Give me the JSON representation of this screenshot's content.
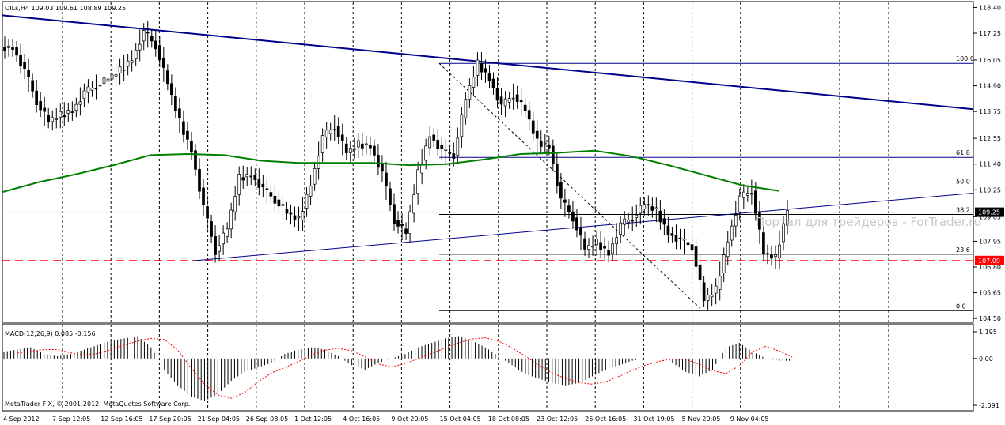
{
  "window": {
    "symbol_header": "OILs,H4  109.03 109.61 108.89 109.25",
    "macd_header": "MACD(12,26,9) 0.085 -0.156",
    "copyright": "MetaTrader FIX, © 2001-2012, MetaQuotes Software Corp.",
    "watermark": "Портал для трейдеров - ForTrader.ru"
  },
  "colors": {
    "ma": "#008000",
    "trendline": "#00008b",
    "support_line": "#ff0000",
    "current_price_box": "#000000",
    "support_price_box": "#ff0000",
    "macd_signal": "#ff0000"
  },
  "chart_data": {
    "type": "candlestick",
    "price_axis": {
      "ticks": [
        "118.40",
        "117.25",
        "116.05",
        "114.90",
        "113.75",
        "112.55",
        "111.40",
        "110.25",
        "109.05",
        "107.95",
        "106.80",
        "105.65",
        "104.50"
      ],
      "min": 104.4,
      "max": 118.45,
      "current_price": "109.25",
      "support_price": "107.09"
    },
    "macd_axis": {
      "ticks": [
        "1.195",
        "0.00",
        "-2.091"
      ],
      "max": 1.195,
      "min": -2.091
    },
    "time_labels": [
      "4 Sep 2012",
      "7 Sep 12:05",
      "12 Sep 16:05",
      "17 Sep 20:05",
      "21 Sep 04:05",
      "26 Sep 08:05",
      "1 Oct 12:05",
      "4 Oct 16:05",
      "9 Oct 20:05",
      "15 Oct 04:05",
      "18 Oct 08:05",
      "23 Oct 12:05",
      "26 Oct 16:05",
      "31 Oct 19:05",
      "5 Nov 20:05",
      "9 Nov 04:05"
    ],
    "fibonacci_levels": [
      {
        "label": "100.0",
        "price": 115.9
      },
      {
        "label": "61.8",
        "price": 111.7
      },
      {
        "label": "50.0",
        "price": 110.42
      },
      {
        "label": "38.2",
        "price": 109.15
      },
      {
        "label": "23.6",
        "price": 107.37
      },
      {
        "label": "0.0",
        "price": 104.85
      }
    ],
    "trend_lines": [
      {
        "name": "descending resistance",
        "from_price": 118.05,
        "to_price": 113.85
      },
      {
        "name": "ascending support",
        "from_price": 107.08,
        "to_price": 110.1
      }
    ],
    "ma_points": [
      110.15,
      110.6,
      110.95,
      111.35,
      111.8,
      111.85,
      111.8,
      111.55,
      111.45,
      111.45,
      111.45,
      111.35,
      111.4,
      111.6,
      111.85,
      111.9,
      112.0,
      111.75,
      111.35,
      110.9,
      110.45,
      110.2
    ],
    "candles": [
      116.6,
      115.6,
      114.2,
      113.3,
      113.6,
      113.8,
      114.6,
      114.9,
      115.2,
      115.6,
      116.1,
      117.3,
      116.7,
      115.0,
      113.3,
      112.0,
      109.5,
      107.5,
      108.5,
      110.8,
      110.9,
      110.3,
      109.8,
      109.2,
      108.9,
      110.5,
      112.6,
      113.1,
      111.9,
      112.3,
      112.2,
      111.0,
      108.9,
      108.3,
      111.0,
      112.7,
      112.0,
      111.8,
      114.3,
      115.9,
      115.2,
      114.0,
      114.5,
      113.8,
      112.4,
      112.2,
      109.8,
      109.0,
      107.6,
      107.9,
      107.4,
      108.7,
      109.0,
      109.6,
      109.3,
      108.3,
      108.0,
      107.7,
      105.3,
      105.8,
      108.0,
      109.9,
      110.2,
      107.4,
      107.2,
      109.4
    ],
    "macd_histogram": [
      0.3,
      0.4,
      0.5,
      0.2,
      0.1,
      0.2,
      0.4,
      0.6,
      0.8,
      0.9,
      1.0,
      0.5,
      -0.5,
      -1.2,
      -1.7,
      -1.9,
      -1.6,
      -1.0,
      -0.6,
      -0.4,
      -0.2,
      0.2,
      0.4,
      0.5,
      0.4,
      0.1,
      -0.3,
      -0.5,
      -0.2,
      0.0,
      0.2,
      0.5,
      0.7,
      0.9,
      1.0,
      0.8,
      0.5,
      0.1,
      -0.3,
      -0.7,
      -0.9,
      -1.1,
      -1.2,
      -1.1,
      -0.8,
      -0.5,
      -0.3,
      -0.1,
      0.0,
      0.0,
      -0.2,
      -0.6,
      -0.8,
      -0.5,
      0.5,
      0.7,
      0.3,
      0.0,
      -0.1
    ]
  }
}
